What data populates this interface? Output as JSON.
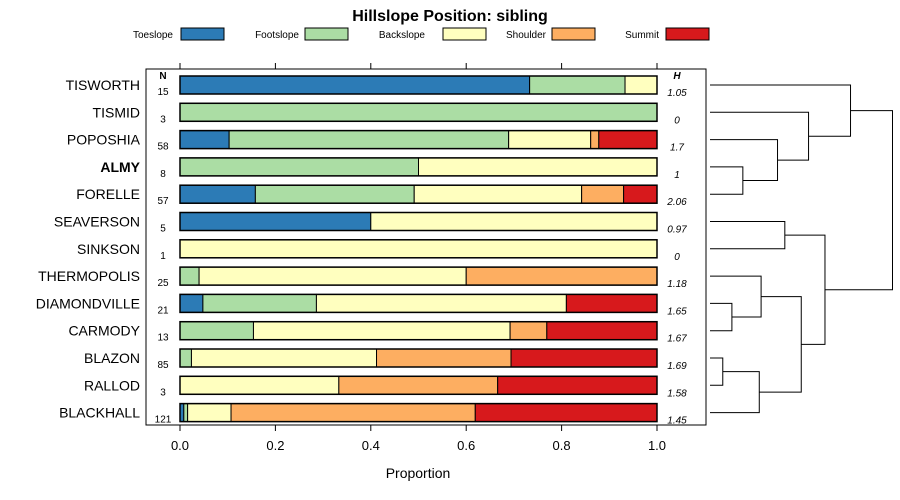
{
  "chart_data": {
    "type": "stacked-bar",
    "title": "Hillslope Position: sibling",
    "xlabel": "Proportion",
    "xlim": [
      0,
      1
    ],
    "x_ticks": [
      "0.0",
      "0.2",
      "0.4",
      "0.6",
      "0.8",
      "1.0"
    ],
    "n_header": "N",
    "h_header": "H",
    "highlighted_row": "ALMY",
    "series": [
      {
        "name": "Toeslope",
        "color": "#2c7bb6"
      },
      {
        "name": "Footslope",
        "color": "#abdda4"
      },
      {
        "name": "Backslope",
        "color": "#ffffbf"
      },
      {
        "name": "Shoulder",
        "color": "#fdae61"
      },
      {
        "name": "Summit",
        "color": "#d7191c"
      }
    ],
    "rows": [
      {
        "name": "TISWORTH",
        "n": "15",
        "h": "1.05",
        "values": [
          0.733,
          0.2,
          0.067,
          0,
          0
        ]
      },
      {
        "name": "TISMID",
        "n": "3",
        "h": "0",
        "values": [
          0,
          1,
          0,
          0,
          0
        ]
      },
      {
        "name": "POPOSHIA",
        "n": "58",
        "h": "1.7",
        "values": [
          0.103,
          0.586,
          0.172,
          0.017,
          0.122
        ]
      },
      {
        "name": "ALMY",
        "n": "8",
        "h": "1",
        "values": [
          0,
          0.5,
          0.5,
          0,
          0
        ]
      },
      {
        "name": "FORELLE",
        "n": "57",
        "h": "2.06",
        "values": [
          0.158,
          0.333,
          0.351,
          0.088,
          0.07
        ]
      },
      {
        "name": "SEAVERSON",
        "n": "5",
        "h": "0.97",
        "values": [
          0.4,
          0,
          0.6,
          0,
          0
        ]
      },
      {
        "name": "SINKSON",
        "n": "1",
        "h": "0",
        "values": [
          0,
          0,
          1,
          0,
          0
        ]
      },
      {
        "name": "THERMOPOLIS",
        "n": "25",
        "h": "1.18",
        "values": [
          0,
          0.04,
          0.56,
          0.4,
          0
        ]
      },
      {
        "name": "DIAMONDVILLE",
        "n": "21",
        "h": "1.65",
        "values": [
          0.048,
          0.238,
          0.524,
          0,
          0.19
        ]
      },
      {
        "name": "CARMODY",
        "n": "13",
        "h": "1.67",
        "values": [
          0,
          0.154,
          0.538,
          0.077,
          0.231
        ]
      },
      {
        "name": "BLAZON",
        "n": "85",
        "h": "1.69",
        "values": [
          0,
          0.024,
          0.388,
          0.282,
          0.306
        ]
      },
      {
        "name": "RALLOD",
        "n": "3",
        "h": "1.58",
        "values": [
          0,
          0,
          0.333,
          0.333,
          0.334
        ]
      },
      {
        "name": "BLACKHALL",
        "n": "121",
        "h": "1.45",
        "values": [
          0.008,
          0.008,
          0.091,
          0.512,
          0.381
        ]
      }
    ],
    "dendrogram": {
      "type": "hierarchical-clustering",
      "leaves": [
        "TISWORTH",
        "TISMID",
        "POPOSHIA",
        "ALMY",
        "FORELLE",
        "SEAVERSON",
        "SINKSON",
        "THERMOPOLIS",
        "DIAMONDVILLE",
        "CARMODY",
        "BLAZON",
        "RALLOD",
        "BLACKHALL"
      ],
      "merges": [
        {
          "a": "ALMY",
          "b": "FORELLE",
          "height": 0.9
        },
        {
          "a": "POPOSHIA",
          "b": "ALMY+FORELLE",
          "height": 1.85
        },
        {
          "a": "TISMID",
          "b": "POPOSHIA+ALMY+FORELLE",
          "height": 2.7
        },
        {
          "a": "TISWORTH",
          "b": "TISMID+POPOSHIA+ALMY+FORELLE",
          "height": 3.85
        },
        {
          "a": "SEAVERSON",
          "b": "SINKSON",
          "height": 2.05
        },
        {
          "a": "DIAMONDVILLE",
          "b": "CARMODY",
          "height": 0.6
        },
        {
          "a": "THERMOPOLIS",
          "b": "DIAMONDVILLE+CARMODY",
          "height": 1.4
        },
        {
          "a": "BLAZON",
          "b": "RALLOD",
          "height": 0.35
        },
        {
          "a": "BLAZON+RALLOD",
          "b": "BLACKHALL",
          "height": 1.35
        },
        {
          "a": "THERMOPOLIS+DIAMONDVILLE+CARMODY",
          "b": "BLAZON+RALLOD+BLACKHALL",
          "height": 2.5
        },
        {
          "a": "SEAVERSON+SINKSON",
          "b": "THERMOPOLIS+...+BLACKHALL",
          "height": 3.15
        },
        {
          "a": "TISWORTH+...+FORELLE",
          "b": "SEAVERSON+...+BLACKHALL",
          "height": 5.0
        }
      ]
    }
  }
}
